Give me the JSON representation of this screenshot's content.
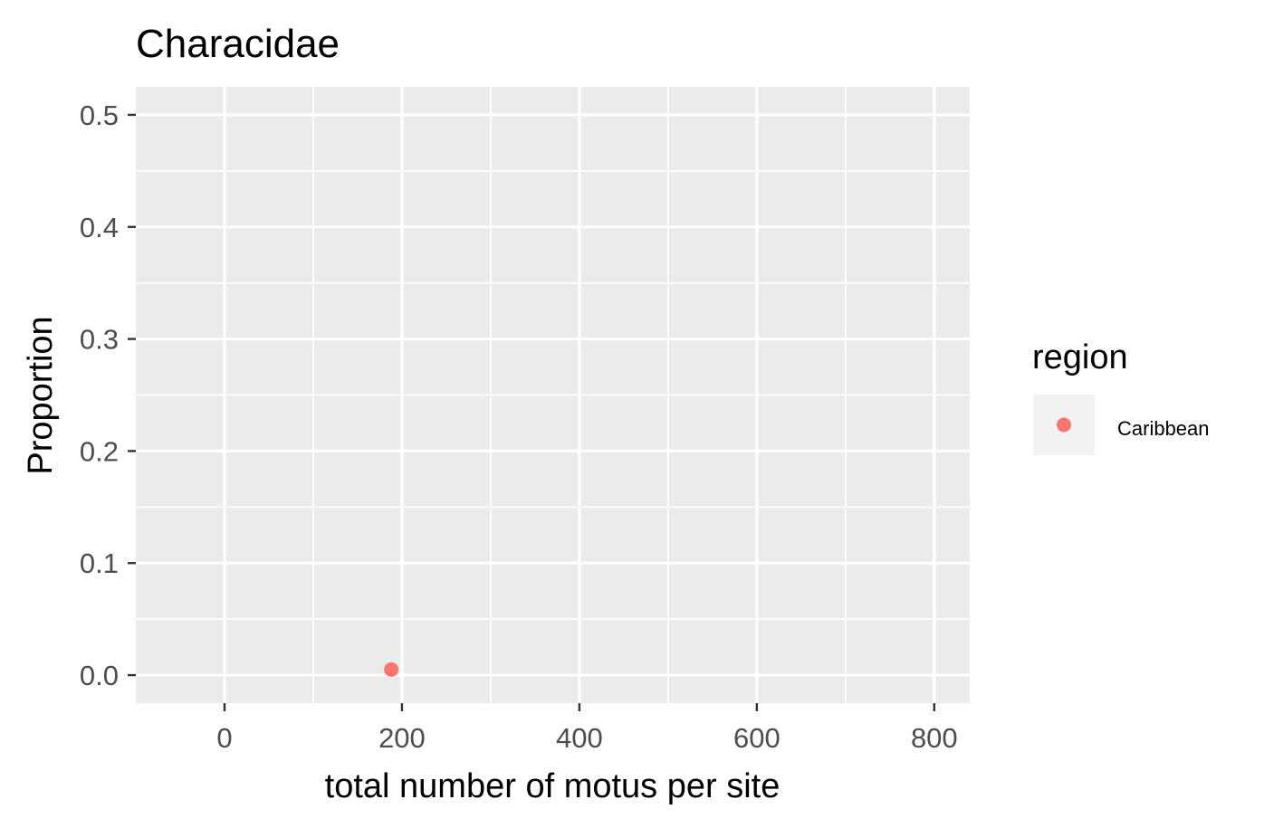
{
  "chart_data": {
    "type": "scatter",
    "title": "Characidae",
    "xlabel": "total number of motus per site",
    "ylabel": "Proportion",
    "xlim": [
      -100,
      840
    ],
    "ylim": [
      -0.025,
      0.525
    ],
    "x_ticks": [
      0,
      200,
      400,
      600,
      800
    ],
    "x_tick_labels": [
      "0",
      "200",
      "400",
      "600",
      "800"
    ],
    "x_minor_ticks": [
      100,
      300,
      500,
      700
    ],
    "y_ticks": [
      0.0,
      0.1,
      0.2,
      0.3,
      0.4,
      0.5
    ],
    "y_tick_labels": [
      "0.0",
      "0.1",
      "0.2",
      "0.3",
      "0.4",
      "0.5"
    ],
    "y_minor_ticks": [
      0.05,
      0.15,
      0.25,
      0.35,
      0.45
    ],
    "grid": true,
    "legend": {
      "title": "region",
      "position": "right",
      "entries": [
        {
          "label": "Caribbean",
          "color": "#F8766D"
        }
      ]
    },
    "series": [
      {
        "name": "Caribbean",
        "color": "#F8766D",
        "points": [
          {
            "x": 188,
            "y": 0.005
          }
        ]
      }
    ]
  },
  "colors": {
    "panel_background": "#EBEBEB",
    "grid_line": "#FFFFFF",
    "tick_text": "#4D4D4D",
    "tick_mark": "#333333"
  }
}
